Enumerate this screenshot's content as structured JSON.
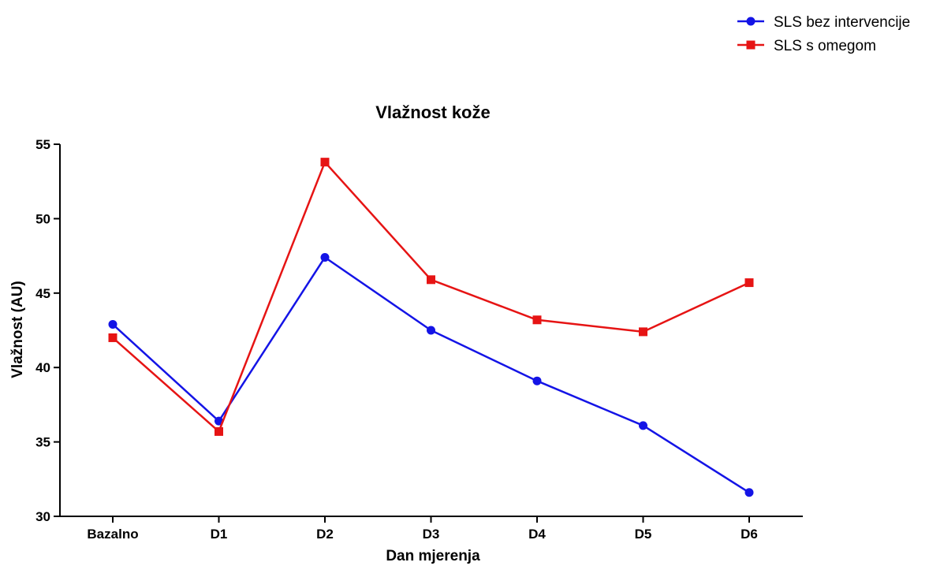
{
  "chart_data": {
    "type": "line",
    "title": "Vlažnost kože",
    "xlabel": "Dan mjerenja",
    "ylabel": "Vlažnost (AU)",
    "categories": [
      "Bazalno",
      "D1",
      "D2",
      "D3",
      "D4",
      "D5",
      "D6"
    ],
    "ylim": [
      30,
      55
    ],
    "yticks": [
      30,
      35,
      40,
      45,
      50,
      55
    ],
    "grid": false,
    "legend_position": "top-right",
    "series": [
      {
        "name": "SLS bez intervencije",
        "color": "#1414e6",
        "marker": "circle",
        "values": [
          42.9,
          36.4,
          47.4,
          42.5,
          39.1,
          36.1,
          31.6
        ]
      },
      {
        "name": "SLS s omegom",
        "color": "#e61414",
        "marker": "square",
        "values": [
          42.0,
          35.7,
          53.8,
          45.9,
          43.2,
          42.4,
          45.7
        ]
      }
    ]
  }
}
